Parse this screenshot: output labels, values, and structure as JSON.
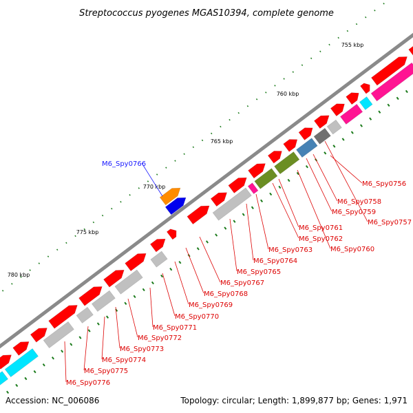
{
  "title": "Streptococcus pyogenes MGAS10394, complete genome",
  "footer": {
    "accession": "Accession: NC_006086",
    "summary": "Topology: circular; Length: 1,899,877 bp; Genes: 1,971"
  },
  "colors": {
    "backbone": "#8a8a8a",
    "gene_red": "#ff0000",
    "gene_gray": "#c0c0c0",
    "gene_cyan": "#00e5ff",
    "gene_magenta": "#ff1493",
    "gene_olive": "#6b8e23",
    "gene_steelblue": "#4682b4",
    "gene_darkgray": "#707070",
    "gene_orange": "#ff8c00",
    "gene_blue": "#0000ee",
    "label_red": "#dd0000",
    "label_blue": "#1a1aff",
    "tick_green": "#1a7a1a"
  },
  "scale_labels": [
    "755 kbp",
    "760 kbp",
    "765 kbp",
    "770 kbp",
    "775 kbp",
    "780 kbp"
  ],
  "gene_labels": [
    {
      "text": "M6_Spy0756",
      "color": "red"
    },
    {
      "text": "M6_Spy0757",
      "color": "red"
    },
    {
      "text": "M6_Spy0758",
      "color": "red"
    },
    {
      "text": "M6_Spy0759",
      "color": "red"
    },
    {
      "text": "M6_Spy0760",
      "color": "red"
    },
    {
      "text": "M6_Spy0761",
      "color": "red"
    },
    {
      "text": "M6_Spy0762",
      "color": "red"
    },
    {
      "text": "M6_Spy0763",
      "color": "red"
    },
    {
      "text": "M6_Spy0764",
      "color": "red"
    },
    {
      "text": "M6_Spy0765",
      "color": "red"
    },
    {
      "text": "M6_Spy0767",
      "color": "red"
    },
    {
      "text": "M6_Spy0768",
      "color": "red"
    },
    {
      "text": "M6_Spy0769",
      "color": "red"
    },
    {
      "text": "M6_Spy0770",
      "color": "red"
    },
    {
      "text": "M6_Spy0771",
      "color": "red"
    },
    {
      "text": "M6_Spy0772",
      "color": "red"
    },
    {
      "text": "M6_Spy0773",
      "color": "red"
    },
    {
      "text": "M6_Spy0774",
      "color": "red"
    },
    {
      "text": "M6_Spy0775",
      "color": "red"
    },
    {
      "text": "M6_Spy0776",
      "color": "red"
    },
    {
      "text": "M6_Spy0766",
      "color": "blue"
    }
  ]
}
